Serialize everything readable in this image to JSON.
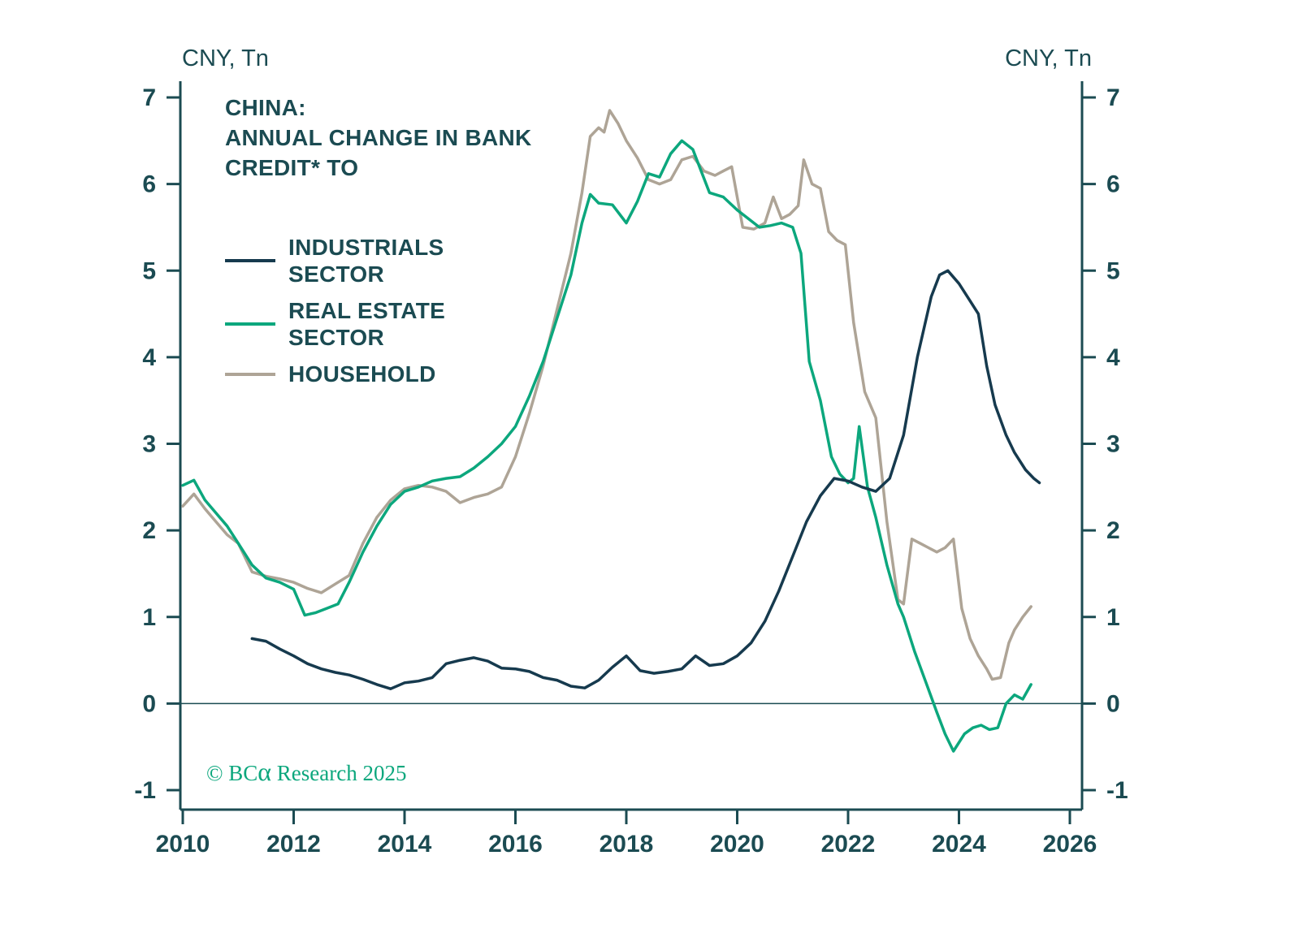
{
  "axis_titles": {
    "left": "CNY, Tn",
    "right": "CNY, Tn"
  },
  "title": {
    "lines": [
      "CHINA:",
      "ANNUAL CHANGE IN BANK",
      "CREDIT* TO"
    ]
  },
  "legend": [
    {
      "id": "industrials-sector",
      "label": "INDUSTRIALS SECTOR"
    },
    {
      "id": "real-estate-sector",
      "label": "REAL ESTATE SECTOR"
    },
    {
      "id": "household",
      "label": "HOUSEHOLD"
    }
  ],
  "copyright": {
    "prefix": "© BC",
    "alpha": "α",
    "suffix": " Research 2025"
  },
  "colors": {
    "text": "#1B4B52",
    "axis": "#1B4B52",
    "green": "#0CA77D",
    "background": "#FFFFFF"
  },
  "chart_data": {
    "type": "line",
    "title": "CHINA: ANNUAL CHANGE IN BANK CREDIT* TO",
    "xlabel": "",
    "ylabel": "CNY, Tn",
    "xlim": [
      2010,
      2026
    ],
    "ylim": [
      -1,
      7
    ],
    "x_ticks": [
      2010,
      2012,
      2014,
      2016,
      2018,
      2020,
      2022,
      2024,
      2026
    ],
    "y_ticks": [
      -1,
      0,
      1,
      2,
      3,
      4,
      5,
      6,
      7
    ],
    "grid": false,
    "zero_line": true,
    "legend_position": "upper-left-inside",
    "series": [
      {
        "id": "industrials-sector",
        "name": "INDUSTRIALS SECTOR",
        "color": "#163A4E",
        "points": [
          [
            2011.25,
            0.75
          ],
          [
            2011.5,
            0.72
          ],
          [
            2011.75,
            0.63
          ],
          [
            2012,
            0.55
          ],
          [
            2012.25,
            0.46
          ],
          [
            2012.5,
            0.4
          ],
          [
            2012.75,
            0.36
          ],
          [
            2013,
            0.33
          ],
          [
            2013.25,
            0.28
          ],
          [
            2013.5,
            0.22
          ],
          [
            2013.75,
            0.17
          ],
          [
            2014,
            0.24
          ],
          [
            2014.25,
            0.26
          ],
          [
            2014.5,
            0.3
          ],
          [
            2014.75,
            0.46
          ],
          [
            2015,
            0.5
          ],
          [
            2015.25,
            0.53
          ],
          [
            2015.5,
            0.49
          ],
          [
            2015.75,
            0.41
          ],
          [
            2016,
            0.4
          ],
          [
            2016.25,
            0.37
          ],
          [
            2016.5,
            0.3
          ],
          [
            2016.75,
            0.27
          ],
          [
            2017,
            0.2
          ],
          [
            2017.25,
            0.18
          ],
          [
            2017.5,
            0.27
          ],
          [
            2017.75,
            0.42
          ],
          [
            2018,
            0.55
          ],
          [
            2018.25,
            0.38
          ],
          [
            2018.5,
            0.35
          ],
          [
            2018.75,
            0.37
          ],
          [
            2019,
            0.4
          ],
          [
            2019.25,
            0.55
          ],
          [
            2019.5,
            0.44
          ],
          [
            2019.75,
            0.46
          ],
          [
            2020,
            0.55
          ],
          [
            2020.25,
            0.7
          ],
          [
            2020.5,
            0.95
          ],
          [
            2020.75,
            1.3
          ],
          [
            2021,
            1.7
          ],
          [
            2021.25,
            2.1
          ],
          [
            2021.5,
            2.4
          ],
          [
            2021.75,
            2.6
          ],
          [
            2022,
            2.57
          ],
          [
            2022.25,
            2.5
          ],
          [
            2022.5,
            2.45
          ],
          [
            2022.75,
            2.6
          ],
          [
            2023,
            3.1
          ],
          [
            2023.25,
            4.0
          ],
          [
            2023.5,
            4.7
          ],
          [
            2023.65,
            4.95
          ],
          [
            2023.8,
            5.0
          ],
          [
            2024,
            4.85
          ],
          [
            2024.2,
            4.65
          ],
          [
            2024.35,
            4.5
          ],
          [
            2024.5,
            3.9
          ],
          [
            2024.65,
            3.45
          ],
          [
            2024.85,
            3.1
          ],
          [
            2025,
            2.9
          ],
          [
            2025.2,
            2.7
          ],
          [
            2025.35,
            2.6
          ],
          [
            2025.45,
            2.55
          ]
        ]
      },
      {
        "id": "real-estate-sector",
        "name": "REAL ESTATE SECTOR",
        "color": "#0CA77D",
        "points": [
          [
            2010,
            2.52
          ],
          [
            2010.2,
            2.58
          ],
          [
            2010.4,
            2.35
          ],
          [
            2010.6,
            2.2
          ],
          [
            2010.8,
            2.05
          ],
          [
            2011,
            1.85
          ],
          [
            2011.25,
            1.6
          ],
          [
            2011.5,
            1.45
          ],
          [
            2011.75,
            1.4
          ],
          [
            2012,
            1.32
          ],
          [
            2012.2,
            1.02
          ],
          [
            2012.4,
            1.05
          ],
          [
            2012.6,
            1.1
          ],
          [
            2012.8,
            1.15
          ],
          [
            2013,
            1.4
          ],
          [
            2013.25,
            1.75
          ],
          [
            2013.5,
            2.05
          ],
          [
            2013.75,
            2.3
          ],
          [
            2014,
            2.45
          ],
          [
            2014.25,
            2.5
          ],
          [
            2014.5,
            2.57
          ],
          [
            2014.75,
            2.6
          ],
          [
            2015,
            2.62
          ],
          [
            2015.25,
            2.72
          ],
          [
            2015.5,
            2.85
          ],
          [
            2015.75,
            3.0
          ],
          [
            2016,
            3.2
          ],
          [
            2016.25,
            3.55
          ],
          [
            2016.5,
            3.95
          ],
          [
            2016.75,
            4.45
          ],
          [
            2017,
            4.95
          ],
          [
            2017.2,
            5.55
          ],
          [
            2017.35,
            5.88
          ],
          [
            2017.5,
            5.78
          ],
          [
            2017.75,
            5.76
          ],
          [
            2018,
            5.55
          ],
          [
            2018.2,
            5.8
          ],
          [
            2018.4,
            6.12
          ],
          [
            2018.6,
            6.08
          ],
          [
            2018.8,
            6.35
          ],
          [
            2019,
            6.5
          ],
          [
            2019.2,
            6.4
          ],
          [
            2019.35,
            6.15
          ],
          [
            2019.5,
            5.9
          ],
          [
            2019.75,
            5.85
          ],
          [
            2020,
            5.7
          ],
          [
            2020.2,
            5.6
          ],
          [
            2020.4,
            5.5
          ],
          [
            2020.6,
            5.52
          ],
          [
            2020.8,
            5.55
          ],
          [
            2021,
            5.5
          ],
          [
            2021.15,
            5.2
          ],
          [
            2021.3,
            3.95
          ],
          [
            2021.5,
            3.5
          ],
          [
            2021.7,
            2.85
          ],
          [
            2021.85,
            2.65
          ],
          [
            2022,
            2.55
          ],
          [
            2022.1,
            2.6
          ],
          [
            2022.2,
            3.2
          ],
          [
            2022.35,
            2.5
          ],
          [
            2022.5,
            2.15
          ],
          [
            2022.7,
            1.6
          ],
          [
            2022.9,
            1.15
          ],
          [
            2023,
            1.0
          ],
          [
            2023.2,
            0.6
          ],
          [
            2023.4,
            0.25
          ],
          [
            2023.6,
            -0.1
          ],
          [
            2023.75,
            -0.35
          ],
          [
            2023.9,
            -0.55
          ],
          [
            2024.1,
            -0.35
          ],
          [
            2024.25,
            -0.28
          ],
          [
            2024.4,
            -0.25
          ],
          [
            2024.55,
            -0.3
          ],
          [
            2024.7,
            -0.28
          ],
          [
            2024.85,
            0.0
          ],
          [
            2025,
            0.1
          ],
          [
            2025.15,
            0.05
          ],
          [
            2025.3,
            0.22
          ]
        ]
      },
      {
        "id": "household",
        "name": "HOUSEHOLD",
        "color": "#AEA496",
        "points": [
          [
            2010,
            2.28
          ],
          [
            2010.2,
            2.42
          ],
          [
            2010.4,
            2.25
          ],
          [
            2010.6,
            2.1
          ],
          [
            2010.8,
            1.95
          ],
          [
            2011,
            1.85
          ],
          [
            2011.25,
            1.52
          ],
          [
            2011.5,
            1.47
          ],
          [
            2011.75,
            1.44
          ],
          [
            2012,
            1.4
          ],
          [
            2012.25,
            1.33
          ],
          [
            2012.5,
            1.28
          ],
          [
            2012.75,
            1.38
          ],
          [
            2013,
            1.48
          ],
          [
            2013.25,
            1.85
          ],
          [
            2013.5,
            2.15
          ],
          [
            2013.75,
            2.35
          ],
          [
            2014,
            2.48
          ],
          [
            2014.25,
            2.52
          ],
          [
            2014.5,
            2.5
          ],
          [
            2014.75,
            2.45
          ],
          [
            2015,
            2.32
          ],
          [
            2015.25,
            2.38
          ],
          [
            2015.5,
            2.42
          ],
          [
            2015.75,
            2.5
          ],
          [
            2016,
            2.85
          ],
          [
            2016.25,
            3.35
          ],
          [
            2016.5,
            3.9
          ],
          [
            2016.75,
            4.55
          ],
          [
            2017,
            5.2
          ],
          [
            2017.2,
            5.9
          ],
          [
            2017.35,
            6.55
          ],
          [
            2017.5,
            6.65
          ],
          [
            2017.6,
            6.6
          ],
          [
            2017.7,
            6.85
          ],
          [
            2017.85,
            6.7
          ],
          [
            2018,
            6.5
          ],
          [
            2018.2,
            6.3
          ],
          [
            2018.4,
            6.05
          ],
          [
            2018.6,
            6.0
          ],
          [
            2018.8,
            6.05
          ],
          [
            2019,
            6.28
          ],
          [
            2019.2,
            6.32
          ],
          [
            2019.4,
            6.15
          ],
          [
            2019.6,
            6.1
          ],
          [
            2019.75,
            6.15
          ],
          [
            2019.9,
            6.2
          ],
          [
            2020.1,
            5.5
          ],
          [
            2020.3,
            5.48
          ],
          [
            2020.5,
            5.55
          ],
          [
            2020.65,
            5.85
          ],
          [
            2020.8,
            5.6
          ],
          [
            2020.95,
            5.65
          ],
          [
            2021.1,
            5.75
          ],
          [
            2021.2,
            6.28
          ],
          [
            2021.35,
            6.0
          ],
          [
            2021.5,
            5.95
          ],
          [
            2021.65,
            5.45
          ],
          [
            2021.8,
            5.35
          ],
          [
            2021.95,
            5.3
          ],
          [
            2022.1,
            4.4
          ],
          [
            2022.3,
            3.6
          ],
          [
            2022.5,
            3.3
          ],
          [
            2022.7,
            2.1
          ],
          [
            2022.9,
            1.2
          ],
          [
            2023,
            1.15
          ],
          [
            2023.15,
            1.9
          ],
          [
            2023.3,
            1.85
          ],
          [
            2023.45,
            1.8
          ],
          [
            2023.6,
            1.75
          ],
          [
            2023.75,
            1.8
          ],
          [
            2023.9,
            1.9
          ],
          [
            2024.05,
            1.1
          ],
          [
            2024.2,
            0.75
          ],
          [
            2024.35,
            0.55
          ],
          [
            2024.5,
            0.4
          ],
          [
            2024.6,
            0.28
          ],
          [
            2024.75,
            0.3
          ],
          [
            2024.9,
            0.7
          ],
          [
            2025,
            0.85
          ],
          [
            2025.15,
            1.0
          ],
          [
            2025.3,
            1.12
          ]
        ]
      }
    ]
  }
}
